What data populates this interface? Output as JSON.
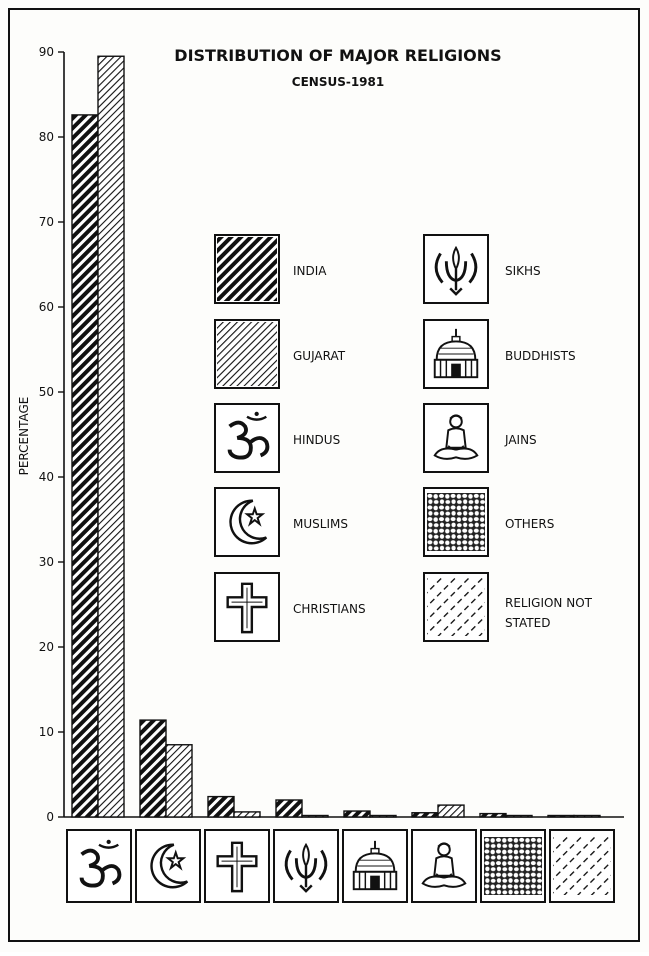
{
  "chart_data": {
    "type": "bar",
    "title": "DISTRIBUTION OF MAJOR RELIGIONS",
    "subtitle": "CENSUS-1981",
    "ylabel": "PERCENTAGE",
    "xlabel": "",
    "ylim": [
      0,
      90
    ],
    "yticks": [
      0,
      10,
      20,
      30,
      40,
      50,
      60,
      70,
      80,
      90
    ],
    "categories": [
      "HINDUS",
      "MUSLIMS",
      "CHRISTIANS",
      "SIKHS",
      "BUDDHISTS",
      "JAINS",
      "OTHERS",
      "RELIGION NOT STATED"
    ],
    "category_icons": [
      "om-icon",
      "crescent-star-icon",
      "cross-icon",
      "khanda-icon",
      "stupa-icon",
      "jain-figure-icon",
      "pebbles-icon",
      "diagonal-lines-icon"
    ],
    "series": [
      {
        "name": "INDIA",
        "pattern": "dense-hatch",
        "values": [
          82.6,
          11.4,
          2.4,
          2.0,
          0.7,
          0.5,
          0.4,
          0.1
        ]
      },
      {
        "name": "GUJARAT",
        "pattern": "light-hatch",
        "values": [
          89.5,
          8.5,
          0.6,
          0.1,
          0.03,
          1.4,
          0.1,
          0.01
        ]
      }
    ],
    "legend": {
      "placement": "center",
      "items": [
        {
          "label": "INDIA",
          "icon": "dense-hatch-swatch"
        },
        {
          "label": "GUJARAT",
          "icon": "light-hatch-swatch"
        },
        {
          "label": "HINDUS",
          "icon": "om-icon"
        },
        {
          "label": "MUSLIMS",
          "icon": "crescent-star-icon"
        },
        {
          "label": "CHRISTIANS",
          "icon": "cross-icon"
        },
        {
          "label": "SIKHS",
          "icon": "khanda-icon"
        },
        {
          "label": "BUDDHISTS",
          "icon": "stupa-icon"
        },
        {
          "label": "JAINS",
          "icon": "jain-figure-icon"
        },
        {
          "label": "OTHERS",
          "icon": "pebbles-icon"
        },
        {
          "label": "RELIGION NOT STATED",
          "icon": "diagonal-lines-icon"
        }
      ]
    },
    "colors": {
      "ink": "#111111",
      "paper": "#fdfdfb"
    },
    "grid": false
  }
}
